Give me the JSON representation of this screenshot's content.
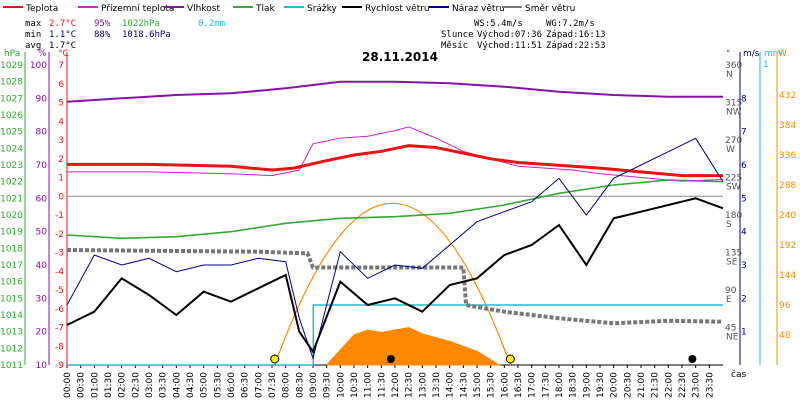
{
  "chart_data": {
    "type": "line",
    "title": "28.11.2014",
    "legend": [
      {
        "name": "Teplota",
        "color": "#ee1111"
      },
      {
        "name": "Přízemní teplota",
        "color": "#cc22cc"
      },
      {
        "name": "Vlhkost",
        "color": "#8811aa"
      },
      {
        "name": "Tlak",
        "color": "#33aa33"
      },
      {
        "name": "Srážky",
        "color": "#22bbcc"
      },
      {
        "name": "Rychlost větru",
        "color": "#000000"
      },
      {
        "name": "Náraz větru",
        "color": "#000088"
      },
      {
        "name": "Směr větru",
        "color": "#777777"
      }
    ],
    "stats": {
      "max_label": "max",
      "max_temp": "2.7°C",
      "max_hum": "95%",
      "max_press": "1022hPa",
      "max_rain": "0.2mm",
      "min_label": "min",
      "min_temp": "1.1°C",
      "min_hum": "88%",
      "min_press": "1018.6hPa",
      "avg_label": "avg",
      "avg_temp": "1.7°C"
    },
    "wind_info": {
      "ws": "WS:5.4m/s",
      "wg": "WG:7.2m/s"
    },
    "sun_info": {
      "label": "Slunce",
      "rise": "Východ:07:36",
      "set": "Západ:16:13"
    },
    "moon_info": {
      "label": "Měsíc",
      "rise": "Východ:11:51",
      "set": "Západ:22:53"
    },
    "axis_units": {
      "hpa": "hPa",
      "pct": "%",
      "celsius": "°C",
      "deg": "°",
      "ms": "m/s",
      "mm": "mm",
      "w": "W",
      "time": "čas"
    },
    "yaxis_hpa": [
      "1029",
      "1028",
      "1027",
      "1026",
      "1025",
      "1024",
      "1023",
      "1022",
      "1021",
      "1020",
      "1019",
      "1018",
      "1017",
      "1016",
      "1015",
      "1014",
      "1013",
      "1012",
      "1011"
    ],
    "yaxis_pct": [
      "100",
      "90",
      "80",
      "70",
      "60",
      "50",
      "40",
      "30",
      "20",
      "10"
    ],
    "yaxis_celsius": [
      "7",
      "6",
      "5",
      "4",
      "3",
      "2",
      "1",
      "0",
      "-1",
      "-2",
      "-3",
      "-4",
      "-5",
      "-6",
      "-7",
      "-8",
      "-9"
    ],
    "yaxis_deg": [
      {
        "v": "360",
        "d": "N"
      },
      {
        "v": "315",
        "d": "NW"
      },
      {
        "v": "270",
        "d": "W"
      },
      {
        "v": "225",
        "d": "SW"
      },
      {
        "v": "180",
        "d": "S"
      },
      {
        "v": "135",
        "d": "SE"
      },
      {
        "v": "90",
        "d": "E"
      },
      {
        "v": "45",
        "d": "NE"
      }
    ],
    "yaxis_ms": [
      "8",
      "7",
      "6",
      "5",
      "4",
      "3",
      "2",
      "1"
    ],
    "yaxis_mm_top": "1",
    "yaxis_w": [
      "432",
      "384",
      "336",
      "288",
      "240",
      "192",
      "144",
      "96",
      "48"
    ],
    "xaxis_times": [
      "00:00",
      "00:30",
      "01:00",
      "01:30",
      "02:00",
      "02:30",
      "03:00",
      "03:30",
      "04:00",
      "04:30",
      "05:00",
      "05:30",
      "06:00",
      "06:30",
      "07:00",
      "07:30",
      "08:00",
      "08:30",
      "09:00",
      "09:30",
      "10:00",
      "10:30",
      "11:00",
      "11:30",
      "12:00",
      "12:30",
      "13:00",
      "13:30",
      "14:00",
      "14:30",
      "15:00",
      "15:30",
      "16:00",
      "16:30",
      "17:00",
      "17:30",
      "18:00",
      "18:30",
      "19:00",
      "19:30",
      "20:00",
      "20:30",
      "21:00",
      "21:30",
      "22:00",
      "22:30",
      "23:00",
      "23:30"
    ],
    "series_data": {
      "temperature_c": [
        [
          0,
          1.7
        ],
        [
          3,
          1.7
        ],
        [
          6,
          1.6
        ],
        [
          7.5,
          1.4
        ],
        [
          8.3,
          1.5
        ],
        [
          9.5,
          1.9
        ],
        [
          10.5,
          2.2
        ],
        [
          11.5,
          2.4
        ],
        [
          12.5,
          2.7
        ],
        [
          13.5,
          2.6
        ],
        [
          14.5,
          2.3
        ],
        [
          15.5,
          2.0
        ],
        [
          16.5,
          1.8
        ],
        [
          17.5,
          1.7
        ],
        [
          18.5,
          1.6
        ],
        [
          19.5,
          1.5
        ],
        [
          21,
          1.3
        ],
        [
          22.5,
          1.1
        ],
        [
          24,
          1.1
        ]
      ],
      "ground_temp_c": [
        [
          0,
          1.3
        ],
        [
          3,
          1.3
        ],
        [
          6,
          1.2
        ],
        [
          7.5,
          1.1
        ],
        [
          8.5,
          1.4
        ],
        [
          9.0,
          2.8
        ],
        [
          10,
          3.1
        ],
        [
          11,
          3.2
        ],
        [
          12,
          3.5
        ],
        [
          12.5,
          3.7
        ],
        [
          13.5,
          3.1
        ],
        [
          14.5,
          2.4
        ],
        [
          15.5,
          2.0
        ],
        [
          16.5,
          1.6
        ],
        [
          17.5,
          1.5
        ],
        [
          18.5,
          1.4
        ],
        [
          19.5,
          1.2
        ],
        [
          21,
          1.0
        ],
        [
          22.5,
          0.8
        ],
        [
          24,
          0.9
        ]
      ],
      "humidity_pct": [
        [
          0,
          89
        ],
        [
          2,
          90
        ],
        [
          4,
          91
        ],
        [
          6,
          91.5
        ],
        [
          8,
          93
        ],
        [
          10,
          95
        ],
        [
          12,
          95
        ],
        [
          14,
          94.5
        ],
        [
          16,
          93.5
        ],
        [
          18,
          92
        ],
        [
          20,
          91
        ],
        [
          22,
          90.5
        ],
        [
          24,
          90.5
        ]
      ],
      "pressure_hpa": [
        [
          0,
          1018.8
        ],
        [
          2,
          1018.6
        ],
        [
          4,
          1018.7
        ],
        [
          6,
          1019.0
        ],
        [
          8,
          1019.5
        ],
        [
          10,
          1019.8
        ],
        [
          12,
          1019.9
        ],
        [
          14,
          1020.1
        ],
        [
          16,
          1020.6
        ],
        [
          18,
          1021.3
        ],
        [
          20,
          1021.8
        ],
        [
          22,
          1022.1
        ],
        [
          24,
          1022.0
        ]
      ],
      "rain_mm": [
        [
          0,
          0
        ],
        [
          9.0,
          0
        ],
        [
          9.01,
          0.2
        ],
        [
          24,
          0.2
        ]
      ],
      "wind_speed_ms": [
        [
          0,
          1.2
        ],
        [
          1,
          1.6
        ],
        [
          2,
          2.6
        ],
        [
          3,
          2.1
        ],
        [
          4,
          1.5
        ],
        [
          5,
          2.2
        ],
        [
          6,
          1.9
        ],
        [
          7,
          2.3
        ],
        [
          8,
          2.7
        ],
        [
          8.5,
          1.0
        ],
        [
          9,
          0.4
        ],
        [
          10,
          2.5
        ],
        [
          11,
          1.8
        ],
        [
          12,
          2.0
        ],
        [
          13,
          1.6
        ],
        [
          14,
          2.4
        ],
        [
          15,
          2.6
        ],
        [
          16,
          3.3
        ],
        [
          17,
          3.6
        ],
        [
          18,
          4.2
        ],
        [
          19,
          3.0
        ],
        [
          20,
          4.4
        ],
        [
          21,
          4.6
        ],
        [
          22,
          4.8
        ],
        [
          23,
          5.0
        ],
        [
          24,
          4.7
        ]
      ],
      "wind_gust_ms": [
        [
          0,
          1.8
        ],
        [
          1,
          3.3
        ],
        [
          2,
          3.0
        ],
        [
          3,
          3.2
        ],
        [
          4,
          2.8
        ],
        [
          5,
          3.0
        ],
        [
          6,
          3.0
        ],
        [
          7,
          3.2
        ],
        [
          8,
          3.1
        ],
        [
          8.5,
          1.4
        ],
        [
          9,
          0.2
        ],
        [
          10,
          3.4
        ],
        [
          11,
          2.6
        ],
        [
          12,
          3.0
        ],
        [
          13,
          2.9
        ],
        [
          14,
          3.6
        ],
        [
          15,
          4.3
        ],
        [
          16,
          4.6
        ],
        [
          17,
          4.9
        ],
        [
          18,
          5.6
        ],
        [
          19,
          4.5
        ],
        [
          20,
          5.6
        ],
        [
          21,
          6.0
        ],
        [
          22,
          6.4
        ],
        [
          23,
          6.8
        ],
        [
          24,
          5.5
        ]
      ],
      "wind_dir_deg": [
        [
          0,
          138
        ],
        [
          7,
          136
        ],
        [
          8.8,
          134
        ],
        [
          9.0,
          117
        ],
        [
          14.5,
          117
        ],
        [
          14.6,
          72
        ],
        [
          16,
          64
        ],
        [
          18,
          56
        ],
        [
          20,
          50
        ],
        [
          22,
          53
        ],
        [
          24,
          52
        ]
      ],
      "solar_w": [
        [
          9.5,
          0
        ],
        [
          10,
          24
        ],
        [
          10.5,
          48
        ],
        [
          11,
          56
        ],
        [
          11.5,
          52
        ],
        [
          12,
          56
        ],
        [
          12.5,
          60
        ],
        [
          13,
          50
        ],
        [
          14,
          38
        ],
        [
          15,
          22
        ],
        [
          15.6,
          6
        ],
        [
          15.8,
          0
        ]
      ]
    },
    "sun_arc": {
      "rise_h": 7.6,
      "set_h": 16.22
    },
    "markers": [
      {
        "kind": "sunrise",
        "x_h": 7.6
      },
      {
        "kind": "moonrise",
        "x_h": 11.85
      },
      {
        "kind": "sunset",
        "x_h": 16.22
      },
      {
        "kind": "moonset",
        "x_h": 22.88
      }
    ]
  }
}
